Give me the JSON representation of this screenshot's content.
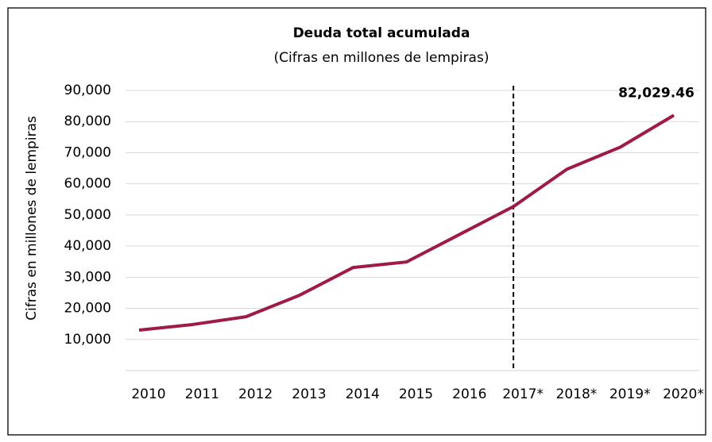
{
  "chart_data": {
    "type": "line",
    "title": "Deuda total acumulada",
    "subtitle": "(Cifras en millones de lempiras)",
    "y_label": "Cifras en millones de lempiras",
    "categories": [
      "2010",
      "2011",
      "2012",
      "2013",
      "2014",
      "2015",
      "2016",
      "2017*",
      "2018*",
      "2019*",
      "2020*"
    ],
    "series": [
      {
        "name": "Deuda total acumulada",
        "color": "#9e1a47",
        "values": [
          13000,
          14800,
          17300,
          24200,
          33100,
          34900,
          43800,
          52700,
          64700,
          71800,
          82029.46
        ],
        "value_labels": [
          null,
          null,
          null,
          null,
          null,
          null,
          null,
          null,
          null,
          null,
          "82,029.46"
        ]
      }
    ],
    "divider_at": "2017*",
    "ylim": [
      0,
      90000
    ],
    "yticks": [
      {
        "value": 10000,
        "label": "10,000"
      },
      {
        "value": 20000,
        "label": "20,000"
      },
      {
        "value": 30000,
        "label": "30,000"
      },
      {
        "value": 40000,
        "label": "40,000"
      },
      {
        "value": 50000,
        "label": "50,000"
      },
      {
        "value": 60000,
        "label": "60,000"
      },
      {
        "value": 70000,
        "label": "70,000"
      },
      {
        "value": 80000,
        "label": "80,000"
      },
      {
        "value": 90000,
        "label": "90,000"
      }
    ],
    "grid": true
  }
}
